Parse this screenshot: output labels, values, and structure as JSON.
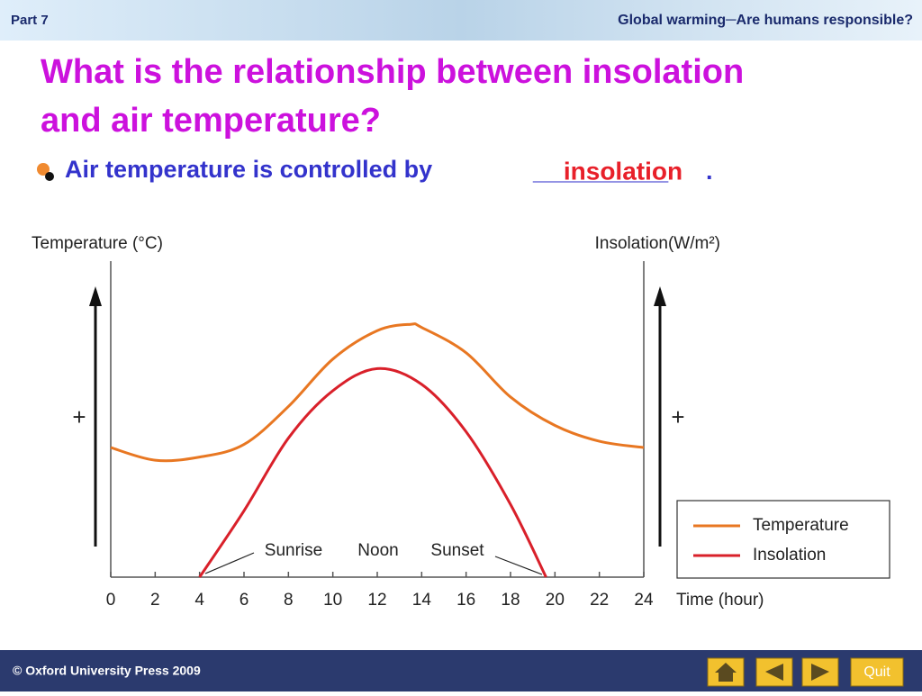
{
  "header": {
    "part": "Part 7",
    "title": "Global warming─Are humans responsible?"
  },
  "slide_title": [
    "What is the relationship between insolation",
    "and air temperature?"
  ],
  "bullet": {
    "text": "Air temperature is controlled by",
    "blank": "__________",
    "answer": "insolation",
    "end": "."
  },
  "chart_data": {
    "type": "line",
    "y_label": "Temperature (°C)",
    "y2_label": "Insolation(W/m²)",
    "x_label": "Time (hour)",
    "y_sign": "+",
    "y2_sign": "+",
    "xlim": [
      0,
      24
    ],
    "xticks": [
      0,
      2,
      4,
      6,
      8,
      10,
      12,
      14,
      16,
      18,
      20,
      22,
      24
    ],
    "ylim": [
      0,
      100
    ],
    "annotations": [
      "Sunrise",
      "Noon",
      "Sunset"
    ],
    "legend": "lower right",
    "series": [
      {
        "name": "Temperature",
        "color": "#e87722",
        "x": [
          0,
          2,
          4,
          6,
          8,
          10,
          12,
          13.5,
          14,
          16,
          18,
          20,
          22,
          24
        ],
        "values": [
          41,
          37,
          38,
          42,
          54,
          69,
          78,
          80,
          79,
          71,
          57,
          48,
          43,
          41
        ]
      },
      {
        "name": "Insolation",
        "color": "#d9202a",
        "x": [
          4,
          6,
          8,
          10,
          12,
          14,
          16,
          18,
          19.6
        ],
        "values": [
          0,
          21,
          44,
          59,
          66,
          61,
          46,
          23,
          0
        ]
      }
    ]
  },
  "footer": {
    "copyright": "© Oxford University Press 2009",
    "quit": "Quit"
  }
}
